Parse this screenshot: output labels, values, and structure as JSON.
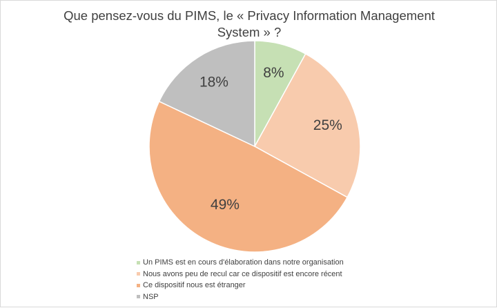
{
  "chart_data": {
    "type": "pie",
    "title_lines": [
      "Que pensez-vous du PIMS, le « Privacy Information Management",
      "System » ?"
    ],
    "slices": [
      {
        "label": "Un PIMS est en cours d'élaboration dans notre organisation",
        "value": 8,
        "value_label": "8%",
        "color": "#c6e0b4"
      },
      {
        "label": "Nous avons peu de recul car ce dispositif est encore récent",
        "value": 25,
        "value_label": "25%",
        "color": "#f8cbad"
      },
      {
        "label": "Ce dispositif nous est étranger",
        "value": 49,
        "value_label": "49%",
        "color": "#f4b183"
      },
      {
        "label": "NSP",
        "value": 18,
        "value_label": "18%",
        "color": "#bfbfbf"
      }
    ],
    "legend_position": "bottom",
    "start_angle": "12 o'clock, clockwise"
  }
}
